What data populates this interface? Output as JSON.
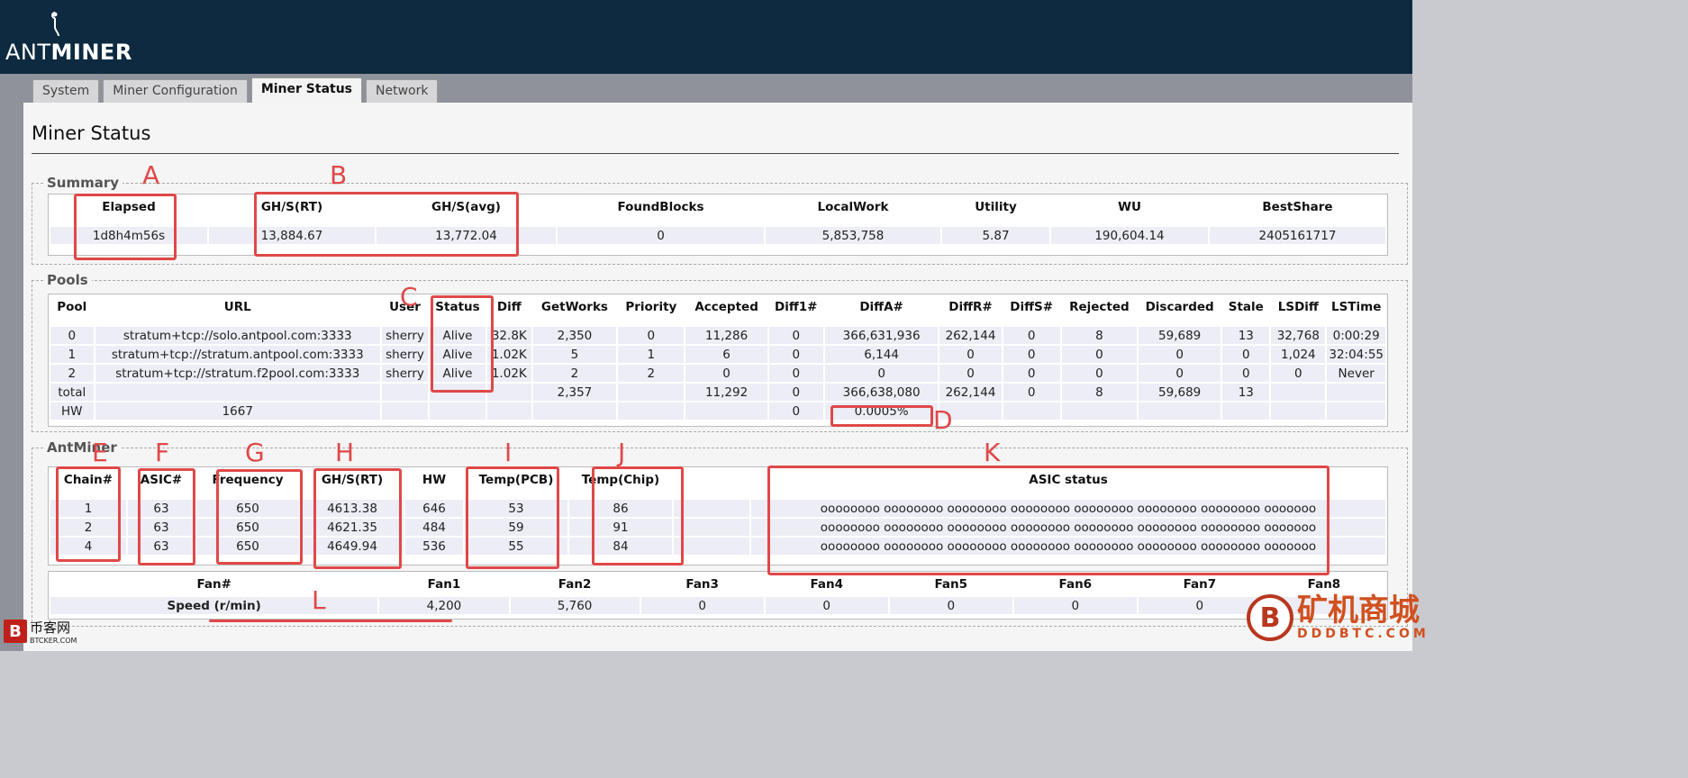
{
  "app": {
    "logo_light": "ANT",
    "logo_bold": "MINER"
  },
  "tabs": [
    {
      "label": "System",
      "active": false
    },
    {
      "label": "Miner Configuration",
      "active": false
    },
    {
      "label": "Miner Status",
      "active": true
    },
    {
      "label": "Network",
      "active": false
    }
  ],
  "page_title": "Miner Status",
  "summary": {
    "legend": "Summary",
    "headers": [
      "Elapsed",
      "GH/S(RT)",
      "GH/S(avg)",
      "FoundBlocks",
      "LocalWork",
      "Utility",
      "WU",
      "BestShare"
    ],
    "values": [
      "1d8h4m56s",
      "13,884.67",
      "13,772.04",
      "0",
      "5,853,758",
      "5.87",
      "190,604.14",
      "2405161717"
    ]
  },
  "pools": {
    "legend": "Pools",
    "headers": [
      "Pool",
      "URL",
      "User",
      "Status",
      "Diff",
      "GetWorks",
      "Priority",
      "Accepted",
      "Diff1#",
      "DiffA#",
      "DiffR#",
      "DiffS#",
      "Rejected",
      "Discarded",
      "Stale",
      "LSDiff",
      "LSTime"
    ],
    "rows": [
      [
        "0",
        "stratum+tcp://solo.antpool.com:3333",
        "sherry",
        "Alive",
        "32.8K",
        "2,350",
        "0",
        "11,286",
        "0",
        "366,631,936",
        "262,144",
        "0",
        "8",
        "59,689",
        "13",
        "32,768",
        "0:00:29"
      ],
      [
        "1",
        "stratum+tcp://stratum.antpool.com:3333",
        "sherry",
        "Alive",
        "1.02K",
        "5",
        "1",
        "6",
        "0",
        "6,144",
        "0",
        "0",
        "0",
        "0",
        "0",
        "1,024",
        "32:04:55"
      ],
      [
        "2",
        "stratum+tcp://stratum.f2pool.com:3333",
        "sherry",
        "Alive",
        "1.02K",
        "2",
        "2",
        "0",
        "0",
        "0",
        "0",
        "0",
        "0",
        "0",
        "0",
        "0",
        "Never"
      ],
      [
        "total",
        "",
        "",
        "",
        "",
        "2,357",
        "",
        "11,292",
        "0",
        "366,638,080",
        "262,144",
        "0",
        "8",
        "59,689",
        "13",
        "",
        ""
      ],
      [
        "HW",
        "1667",
        "",
        "",
        "",
        "",
        "",
        "",
        "0",
        "0.0005%",
        "",
        "",
        "",
        "",
        "",
        "",
        ""
      ]
    ]
  },
  "antminer": {
    "legend": "AntMiner",
    "headers": [
      "Chain#",
      "ASIC#",
      "Frequency",
      "GH/S(RT)",
      "HW",
      "Temp(PCB)",
      "Temp(Chip)",
      "",
      "ASIC status"
    ],
    "rows": [
      [
        "1",
        "63",
        "650",
        "4613.38",
        "646",
        "53",
        "86",
        "",
        "oooooooo oooooooo oooooooo oooooooo oooooooo oooooooo oooooooo ooooooo"
      ],
      [
        "2",
        "63",
        "650",
        "4621.35",
        "484",
        "59",
        "91",
        "",
        "oooooooo oooooooo oooooooo oooooooo oooooooo oooooooo oooooooo ooooooo"
      ],
      [
        "4",
        "63",
        "650",
        "4649.94",
        "536",
        "55",
        "84",
        "",
        "oooooooo oooooooo oooooooo oooooooo oooooooo oooooooo oooooooo ooooooo"
      ]
    ],
    "fan_headers": [
      "Fan#",
      "Fan1",
      "Fan2",
      "Fan3",
      "Fan4",
      "Fan5",
      "Fan6",
      "Fan7",
      "Fan8"
    ],
    "fan_values": [
      "Speed (r/min)",
      "4,200",
      "5,760",
      "0",
      "0",
      "0",
      "0",
      "0",
      ""
    ]
  },
  "annotations": {
    "letters": [
      "A",
      "B",
      "C",
      "D",
      "E",
      "F",
      "G",
      "H",
      "I",
      "J",
      "K",
      "L"
    ],
    "color": "#e04848"
  },
  "watermarks": {
    "left_badge": "B",
    "left_cn": "币客网",
    "left_site": "BTCKER.COM",
    "right_coin": "B",
    "right_cn": "矿机商城",
    "right_site": "DDDBTC.COM"
  }
}
